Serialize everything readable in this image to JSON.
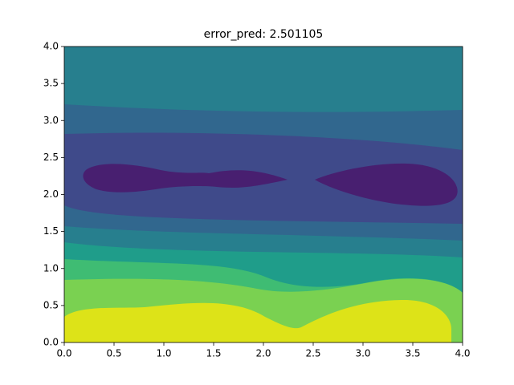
{
  "chart_data": {
    "type": "contour",
    "title": "error_pred: 2.501105",
    "xlim": [
      0,
      4
    ],
    "ylim": [
      0,
      4
    ],
    "xticks": [
      {
        "value": 0,
        "label": "0.0"
      },
      {
        "value": 0.5,
        "label": "0.5"
      },
      {
        "value": 1,
        "label": "1.0"
      },
      {
        "value": 1.5,
        "label": "1.5"
      },
      {
        "value": 2,
        "label": "2.0"
      },
      {
        "value": 2.5,
        "label": "2.5"
      },
      {
        "value": 3,
        "label": "3.0"
      },
      {
        "value": 3.5,
        "label": "3.5"
      },
      {
        "value": 4,
        "label": "4.0"
      }
    ],
    "yticks": [
      {
        "value": 0,
        "label": "0.0"
      },
      {
        "value": 0.5,
        "label": "0.5"
      },
      {
        "value": 1,
        "label": "1.0"
      },
      {
        "value": 1.5,
        "label": "1.5"
      },
      {
        "value": 2,
        "label": "2.0"
      },
      {
        "value": 2.5,
        "label": "2.5"
      },
      {
        "value": 3,
        "label": "3.0"
      },
      {
        "value": 3.5,
        "label": "3.5"
      },
      {
        "value": 4,
        "label": "4.0"
      }
    ],
    "colors": [
      "#481f70",
      "#3f4a8a",
      "#31678e",
      "#277f8e",
      "#1f9d8a",
      "#3fbc73",
      "#7ad151",
      "#dde318"
    ],
    "grid": false
  }
}
